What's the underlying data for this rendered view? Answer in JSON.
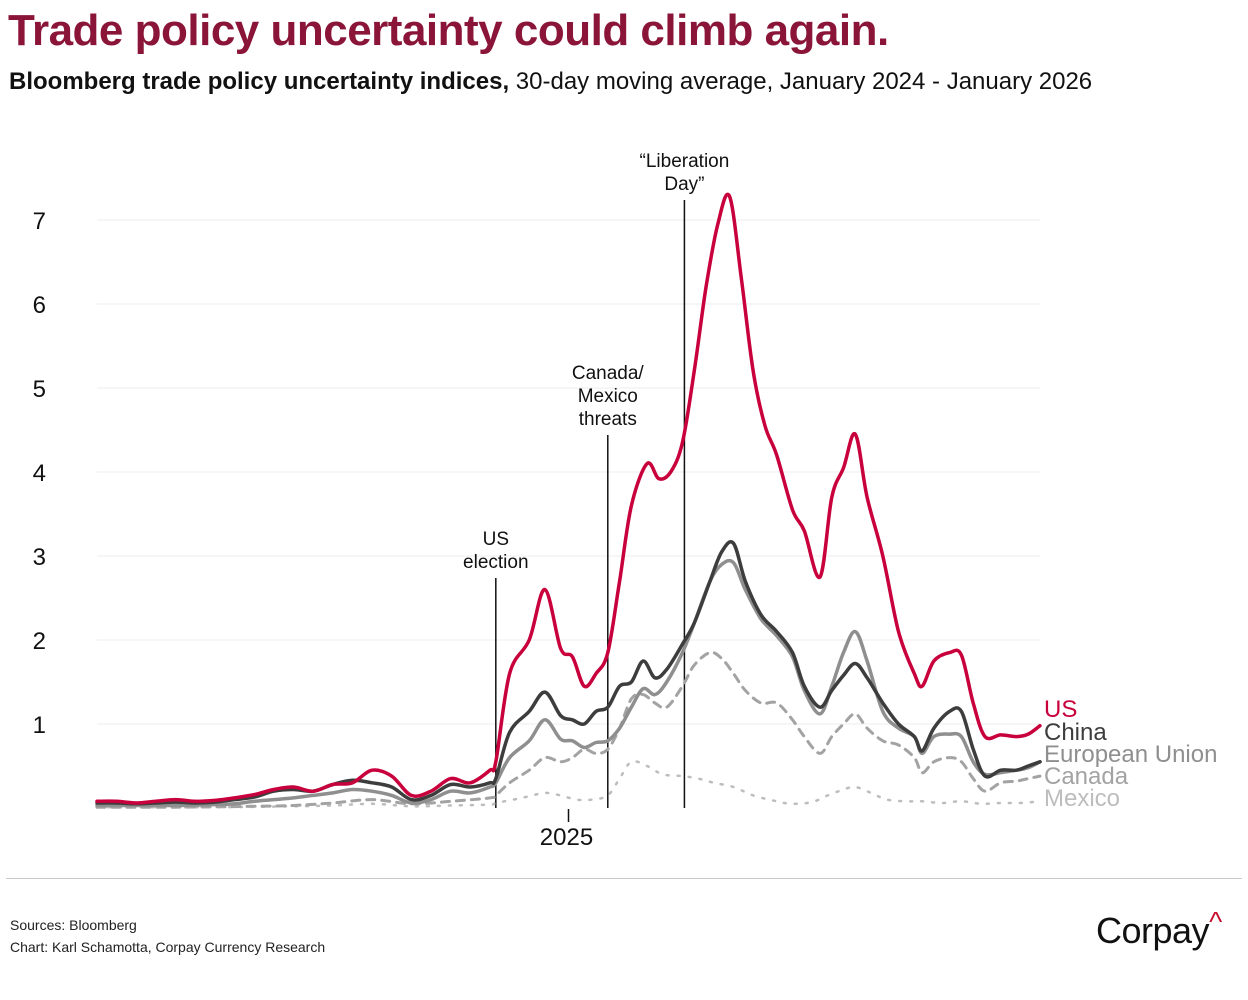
{
  "header": {
    "title": "Trade policy uncertainty could climb again.",
    "subtitle_bold": "Bloomberg trade policy uncertainty indices,",
    "subtitle_rest": " 30-day moving average, January 2024 - January 2026"
  },
  "footer": {
    "sources": "Sources: Bloomberg",
    "credit": "Chart: Karl Schamotta, Corpay Currency Research",
    "logo_text": "Corpay",
    "logo_mark": "^"
  },
  "chart_data": {
    "type": "line",
    "title": "Trade policy uncertainty could climb again.",
    "subtitle": "Bloomberg trade policy uncertainty indices, 30-day moving average, January 2024 - January 2026",
    "xlabel": "",
    "ylabel": "",
    "x_unit": "months since January 2024",
    "xlim": [
      0,
      24
    ],
    "ylim": [
      0,
      7.3
    ],
    "yticks": [
      1,
      2,
      3,
      4,
      5,
      6,
      7
    ],
    "xticks": [
      {
        "x": 12,
        "label": "2025"
      }
    ],
    "grid": "horizontal",
    "legend": "right (end-of-line labels)",
    "colors": {
      "US": "#c8003c",
      "China": "#3d3d3d",
      "European Union": "#8f8f8f",
      "Canada": "#a3a3a3",
      "Mexico": "#bdbdbd",
      "title": "#8a1538",
      "annotation": "#111111",
      "grid": "#ececec"
    },
    "annotations": [
      {
        "x": 10.15,
        "lines": [
          "US",
          "election"
        ]
      },
      {
        "x": 13.0,
        "lines": [
          "Canada/",
          "Mexico",
          "threats"
        ]
      },
      {
        "x": 14.95,
        "lines": [
          "“Liberation",
          "Day”"
        ]
      }
    ],
    "series": [
      {
        "name": "US",
        "style": "solid",
        "points": [
          [
            0,
            0.08
          ],
          [
            0.5,
            0.08
          ],
          [
            1,
            0.06
          ],
          [
            1.5,
            0.08
          ],
          [
            2,
            0.1
          ],
          [
            2.5,
            0.08
          ],
          [
            3,
            0.09
          ],
          [
            3.5,
            0.12
          ],
          [
            4,
            0.16
          ],
          [
            4.5,
            0.22
          ],
          [
            5,
            0.25
          ],
          [
            5.5,
            0.2
          ],
          [
            6,
            0.28
          ],
          [
            6.5,
            0.3
          ],
          [
            7,
            0.45
          ],
          [
            7.5,
            0.38
          ],
          [
            8,
            0.15
          ],
          [
            8.5,
            0.2
          ],
          [
            9,
            0.35
          ],
          [
            9.5,
            0.3
          ],
          [
            10,
            0.45
          ],
          [
            10.15,
            0.55
          ],
          [
            10.5,
            1.6
          ],
          [
            11,
            2.0
          ],
          [
            11.4,
            2.6
          ],
          [
            11.8,
            1.9
          ],
          [
            12.1,
            1.8
          ],
          [
            12.4,
            1.45
          ],
          [
            12.7,
            1.6
          ],
          [
            13,
            1.85
          ],
          [
            13.3,
            2.7
          ],
          [
            13.6,
            3.6
          ],
          [
            14,
            4.1
          ],
          [
            14.3,
            3.92
          ],
          [
            14.6,
            4.0
          ],
          [
            14.9,
            4.35
          ],
          [
            15.2,
            5.2
          ],
          [
            15.5,
            6.2
          ],
          [
            15.8,
            6.95
          ],
          [
            16.1,
            7.28
          ],
          [
            16.4,
            6.3
          ],
          [
            16.7,
            5.2
          ],
          [
            17,
            4.55
          ],
          [
            17.3,
            4.2
          ],
          [
            17.7,
            3.55
          ],
          [
            18,
            3.3
          ],
          [
            18.4,
            2.75
          ],
          [
            18.7,
            3.7
          ],
          [
            19,
            4.05
          ],
          [
            19.3,
            4.45
          ],
          [
            19.6,
            3.7
          ],
          [
            20,
            3.0
          ],
          [
            20.4,
            2.1
          ],
          [
            20.8,
            1.6
          ],
          [
            21,
            1.45
          ],
          [
            21.3,
            1.75
          ],
          [
            21.7,
            1.85
          ],
          [
            22,
            1.82
          ],
          [
            22.3,
            1.25
          ],
          [
            22.6,
            0.85
          ],
          [
            23,
            0.87
          ],
          [
            23.4,
            0.85
          ],
          [
            23.7,
            0.88
          ],
          [
            24,
            0.98
          ]
        ]
      },
      {
        "name": "China",
        "style": "solid",
        "points": [
          [
            0,
            0.06
          ],
          [
            0.5,
            0.06
          ],
          [
            1,
            0.05
          ],
          [
            1.5,
            0.06
          ],
          [
            2,
            0.07
          ],
          [
            2.5,
            0.06
          ],
          [
            3,
            0.07
          ],
          [
            3.5,
            0.1
          ],
          [
            4,
            0.13
          ],
          [
            4.5,
            0.2
          ],
          [
            5,
            0.22
          ],
          [
            5.5,
            0.2
          ],
          [
            6,
            0.28
          ],
          [
            6.5,
            0.33
          ],
          [
            7,
            0.3
          ],
          [
            7.5,
            0.25
          ],
          [
            8,
            0.1
          ],
          [
            8.5,
            0.15
          ],
          [
            9,
            0.28
          ],
          [
            9.5,
            0.25
          ],
          [
            10,
            0.3
          ],
          [
            10.15,
            0.35
          ],
          [
            10.5,
            0.9
          ],
          [
            11,
            1.15
          ],
          [
            11.4,
            1.38
          ],
          [
            11.8,
            1.1
          ],
          [
            12.1,
            1.05
          ],
          [
            12.4,
            1.0
          ],
          [
            12.7,
            1.15
          ],
          [
            13,
            1.2
          ],
          [
            13.3,
            1.45
          ],
          [
            13.6,
            1.5
          ],
          [
            13.9,
            1.75
          ],
          [
            14.2,
            1.55
          ],
          [
            14.5,
            1.65
          ],
          [
            14.9,
            1.95
          ],
          [
            15.2,
            2.2
          ],
          [
            15.6,
            2.7
          ],
          [
            15.9,
            3.05
          ],
          [
            16.2,
            3.15
          ],
          [
            16.5,
            2.7
          ],
          [
            16.9,
            2.3
          ],
          [
            17.3,
            2.1
          ],
          [
            17.7,
            1.85
          ],
          [
            18,
            1.45
          ],
          [
            18.4,
            1.2
          ],
          [
            18.7,
            1.4
          ],
          [
            19,
            1.58
          ],
          [
            19.3,
            1.72
          ],
          [
            19.6,
            1.55
          ],
          [
            20,
            1.25
          ],
          [
            20.4,
            1.0
          ],
          [
            20.8,
            0.85
          ],
          [
            21,
            0.68
          ],
          [
            21.3,
            0.95
          ],
          [
            21.7,
            1.15
          ],
          [
            22,
            1.15
          ],
          [
            22.3,
            0.7
          ],
          [
            22.6,
            0.38
          ],
          [
            23,
            0.45
          ],
          [
            23.4,
            0.45
          ],
          [
            23.7,
            0.5
          ],
          [
            24,
            0.55
          ]
        ]
      },
      {
        "name": "European Union",
        "style": "solid",
        "points": [
          [
            0,
            0.03
          ],
          [
            1,
            0.03
          ],
          [
            2,
            0.03
          ],
          [
            3,
            0.04
          ],
          [
            3.5,
            0.05
          ],
          [
            4,
            0.08
          ],
          [
            4.5,
            0.1
          ],
          [
            5,
            0.12
          ],
          [
            5.5,
            0.15
          ],
          [
            6,
            0.18
          ],
          [
            6.5,
            0.22
          ],
          [
            7,
            0.2
          ],
          [
            7.5,
            0.15
          ],
          [
            8,
            0.06
          ],
          [
            8.5,
            0.1
          ],
          [
            9,
            0.2
          ],
          [
            9.5,
            0.18
          ],
          [
            10,
            0.25
          ],
          [
            10.15,
            0.3
          ],
          [
            10.5,
            0.6
          ],
          [
            11,
            0.8
          ],
          [
            11.4,
            1.05
          ],
          [
            11.8,
            0.82
          ],
          [
            12.1,
            0.8
          ],
          [
            12.4,
            0.72
          ],
          [
            12.7,
            0.78
          ],
          [
            13,
            0.8
          ],
          [
            13.3,
            0.95
          ],
          [
            13.6,
            1.2
          ],
          [
            13.9,
            1.42
          ],
          [
            14.2,
            1.35
          ],
          [
            14.5,
            1.5
          ],
          [
            14.9,
            1.85
          ],
          [
            15.2,
            2.2
          ],
          [
            15.6,
            2.7
          ],
          [
            15.9,
            2.9
          ],
          [
            16.2,
            2.92
          ],
          [
            16.5,
            2.6
          ],
          [
            16.9,
            2.25
          ],
          [
            17.3,
            2.05
          ],
          [
            17.7,
            1.8
          ],
          [
            18,
            1.4
          ],
          [
            18.4,
            1.12
          ],
          [
            18.7,
            1.45
          ],
          [
            19,
            1.85
          ],
          [
            19.3,
            2.1
          ],
          [
            19.6,
            1.75
          ],
          [
            20,
            1.15
          ],
          [
            20.4,
            0.95
          ],
          [
            20.8,
            0.85
          ],
          [
            21,
            0.65
          ],
          [
            21.3,
            0.85
          ],
          [
            21.7,
            0.88
          ],
          [
            22,
            0.85
          ],
          [
            22.3,
            0.55
          ],
          [
            22.6,
            0.4
          ],
          [
            23,
            0.42
          ],
          [
            23.4,
            0.45
          ],
          [
            23.7,
            0.48
          ],
          [
            24,
            0.55
          ]
        ]
      },
      {
        "name": "Canada",
        "style": "dashed",
        "points": [
          [
            0,
            0.01
          ],
          [
            2,
            0.01
          ],
          [
            4,
            0.02
          ],
          [
            5,
            0.03
          ],
          [
            6,
            0.06
          ],
          [
            7,
            0.1
          ],
          [
            8,
            0.05
          ],
          [
            9,
            0.08
          ],
          [
            10,
            0.12
          ],
          [
            10.15,
            0.15
          ],
          [
            10.5,
            0.3
          ],
          [
            11,
            0.45
          ],
          [
            11.4,
            0.6
          ],
          [
            11.8,
            0.55
          ],
          [
            12.1,
            0.6
          ],
          [
            12.4,
            0.7
          ],
          [
            12.7,
            0.65
          ],
          [
            13,
            0.7
          ],
          [
            13.3,
            0.95
          ],
          [
            13.6,
            1.3
          ],
          [
            13.9,
            1.35
          ],
          [
            14.2,
            1.25
          ],
          [
            14.5,
            1.2
          ],
          [
            14.9,
            1.45
          ],
          [
            15.2,
            1.7
          ],
          [
            15.6,
            1.85
          ],
          [
            15.9,
            1.78
          ],
          [
            16.2,
            1.6
          ],
          [
            16.5,
            1.4
          ],
          [
            16.9,
            1.25
          ],
          [
            17.3,
            1.25
          ],
          [
            17.7,
            1.05
          ],
          [
            18,
            0.85
          ],
          [
            18.4,
            0.65
          ],
          [
            18.7,
            0.85
          ],
          [
            19,
            1.0
          ],
          [
            19.3,
            1.12
          ],
          [
            19.6,
            0.95
          ],
          [
            20,
            0.8
          ],
          [
            20.4,
            0.75
          ],
          [
            20.8,
            0.6
          ],
          [
            21,
            0.42
          ],
          [
            21.3,
            0.55
          ],
          [
            21.7,
            0.6
          ],
          [
            22,
            0.55
          ],
          [
            22.3,
            0.35
          ],
          [
            22.6,
            0.2
          ],
          [
            23,
            0.3
          ],
          [
            23.4,
            0.32
          ],
          [
            23.7,
            0.35
          ],
          [
            24,
            0.38
          ]
        ]
      },
      {
        "name": "Mexico",
        "style": "dotted",
        "points": [
          [
            0,
            0.01
          ],
          [
            3,
            0.01
          ],
          [
            5,
            0.02
          ],
          [
            6,
            0.03
          ],
          [
            7,
            0.05
          ],
          [
            8,
            0.02
          ],
          [
            9,
            0.03
          ],
          [
            10,
            0.04
          ],
          [
            10.15,
            0.06
          ],
          [
            10.6,
            0.1
          ],
          [
            11,
            0.14
          ],
          [
            11.4,
            0.18
          ],
          [
            11.8,
            0.15
          ],
          [
            12.2,
            0.1
          ],
          [
            12.6,
            0.1
          ],
          [
            13,
            0.15
          ],
          [
            13.3,
            0.35
          ],
          [
            13.6,
            0.55
          ],
          [
            14,
            0.5
          ],
          [
            14.4,
            0.4
          ],
          [
            14.9,
            0.38
          ],
          [
            15.3,
            0.35
          ],
          [
            15.7,
            0.3
          ],
          [
            16.2,
            0.25
          ],
          [
            16.7,
            0.15
          ],
          [
            17.3,
            0.08
          ],
          [
            17.7,
            0.05
          ],
          [
            18.2,
            0.07
          ],
          [
            18.6,
            0.15
          ],
          [
            19,
            0.22
          ],
          [
            19.3,
            0.25
          ],
          [
            19.7,
            0.18
          ],
          [
            20.1,
            0.1
          ],
          [
            20.6,
            0.08
          ],
          [
            21,
            0.08
          ],
          [
            21.5,
            0.06
          ],
          [
            22,
            0.08
          ],
          [
            22.5,
            0.05
          ],
          [
            23,
            0.06
          ],
          [
            23.5,
            0.06
          ],
          [
            24,
            0.08
          ]
        ]
      }
    ]
  }
}
